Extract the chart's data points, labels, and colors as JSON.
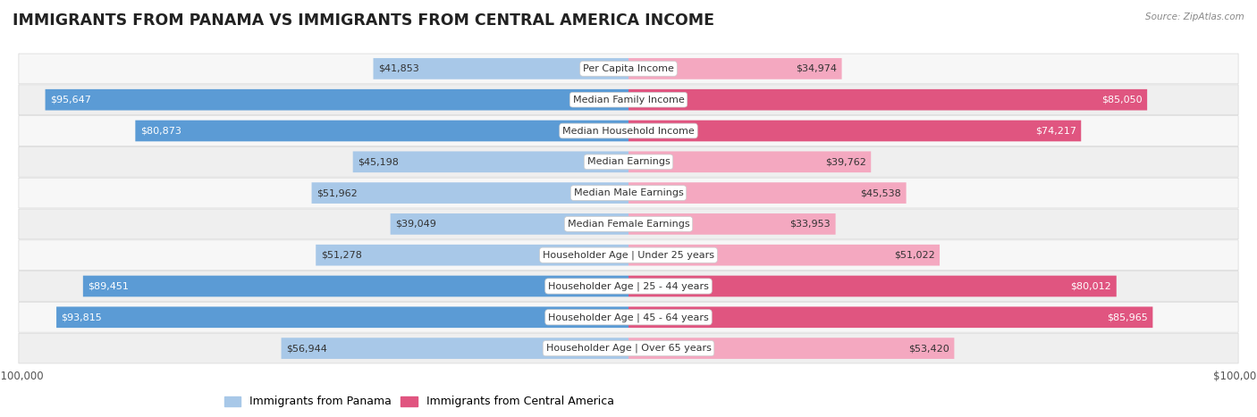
{
  "title": "IMMIGRANTS FROM PANAMA VS IMMIGRANTS FROM CENTRAL AMERICA INCOME",
  "source": "Source: ZipAtlas.com",
  "categories": [
    "Per Capita Income",
    "Median Family Income",
    "Median Household Income",
    "Median Earnings",
    "Median Male Earnings",
    "Median Female Earnings",
    "Householder Age | Under 25 years",
    "Householder Age | 25 - 44 years",
    "Householder Age | 45 - 64 years",
    "Householder Age | Over 65 years"
  ],
  "panama_values": [
    41853,
    95647,
    80873,
    45198,
    51962,
    39049,
    51278,
    89451,
    93815,
    56944
  ],
  "central_america_values": [
    34974,
    85050,
    74217,
    39762,
    45538,
    33953,
    51022,
    80012,
    85965,
    53420
  ],
  "max_value": 100000,
  "panama_color_light": "#a8c8e8",
  "panama_color_strong": "#5b9bd5",
  "central_america_color_light": "#f4a8c0",
  "central_america_color_strong": "#e05580",
  "background_color": "#ffffff",
  "row_bg_even": "#f7f7f7",
  "row_bg_odd": "#efefef",
  "row_border_color": "#d8d8d8",
  "label_color_inside": "#ffffff",
  "label_color_outside": "#444444",
  "title_fontsize": 12.5,
  "label_fontsize": 8.0,
  "category_fontsize": 8.0,
  "axis_fontsize": 8.5,
  "legend_fontsize": 9,
  "strong_threshold_panama": 75000,
  "strong_threshold_ca": 70000
}
